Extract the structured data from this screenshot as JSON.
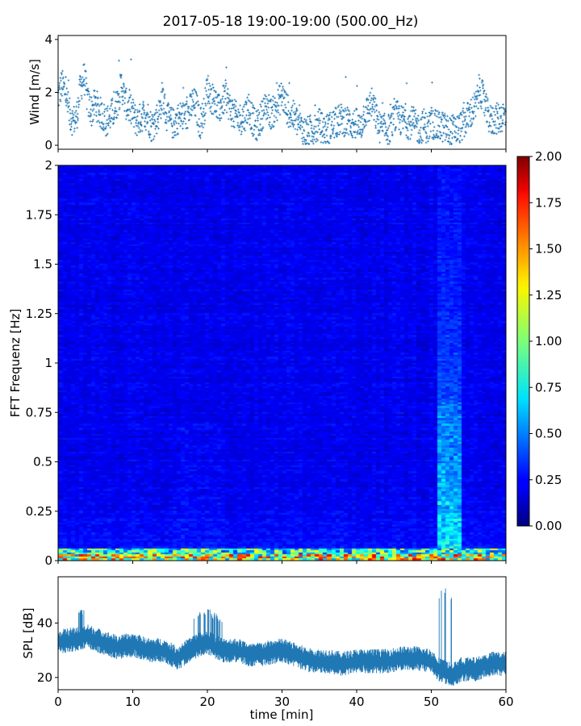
{
  "title": "2017-05-18 19:00-19:00 (500.00_Hz)",
  "chart_data": [
    {
      "type": "scatter",
      "panel": "wind",
      "ylabel": "Wind [m/s]",
      "xlim": [
        0,
        60
      ],
      "ylim": [
        -0.15,
        4.15
      ],
      "yticks": [
        "0",
        "2",
        "4"
      ],
      "marker_color": "#1f77b4",
      "x": [
        0.0,
        0.5,
        1.0,
        1.5,
        2.0,
        2.5,
        3.0,
        3.5,
        4.0,
        4.5,
        5.0,
        5.5,
        6.0,
        6.5,
        7.0,
        7.5,
        8.0,
        8.5,
        9.0,
        9.5,
        10.0,
        10.5,
        11.0,
        11.5,
        12.0,
        12.5,
        13.0,
        13.5,
        14.0,
        14.5,
        15.0,
        15.5,
        16.0,
        16.5,
        17.0,
        17.5,
        18.0,
        18.5,
        19.0,
        19.5,
        20.0,
        20.5,
        21.0,
        21.5,
        22.0,
        22.5,
        23.0,
        23.5,
        24.0,
        24.5,
        25.0,
        25.5,
        26.0,
        26.5,
        27.0,
        27.5,
        28.0,
        28.5,
        29.0,
        29.5,
        30.0,
        30.5,
        31.0,
        31.5,
        32.0,
        32.5,
        33.0,
        33.5,
        34.0,
        34.5,
        35.0,
        35.5,
        36.0,
        36.5,
        37.0,
        37.5,
        38.0,
        38.5,
        39.0,
        39.5,
        40.0,
        40.5,
        41.0,
        41.5,
        42.0,
        42.5,
        43.0,
        43.5,
        44.0,
        44.5,
        45.0,
        45.5,
        46.0,
        46.5,
        47.0,
        47.5,
        48.0,
        48.5,
        49.0,
        49.5,
        50.0,
        50.5,
        51.0,
        51.5,
        52.0,
        52.5,
        53.0,
        53.5,
        54.0,
        54.5,
        55.0,
        55.5,
        56.0,
        56.5,
        57.0,
        57.5,
        58.0,
        58.5,
        59.0,
        59.5
      ],
      "values": [
        1.8,
        2.3,
        2.0,
        1.2,
        0.9,
        1.1,
        2.2,
        2.6,
        1.6,
        1.3,
        1.6,
        1.3,
        1.1,
        0.9,
        1.1,
        1.3,
        1.7,
        2.3,
        1.6,
        1.4,
        1.2,
        0.9,
        1.0,
        1.2,
        1.1,
        0.7,
        0.9,
        1.2,
        1.9,
        1.1,
        0.9,
        0.8,
        1.0,
        1.1,
        1.1,
        1.2,
        1.6,
        1.5,
        0.8,
        1.2,
        2.2,
        1.8,
        1.7,
        1.3,
        1.6,
        1.9,
        1.4,
        1.2,
        1.0,
        1.0,
        1.1,
        1.5,
        1.0,
        0.7,
        0.9,
        1.3,
        1.5,
        1.2,
        1.3,
        1.6,
        1.9,
        1.5,
        1.2,
        1.1,
        0.9,
        0.7,
        0.5,
        0.5,
        0.6,
        0.6,
        0.8,
        0.6,
        0.6,
        0.7,
        0.8,
        0.9,
        1.0,
        0.9,
        0.9,
        0.8,
        0.8,
        0.6,
        1.2,
        1.3,
        1.6,
        1.2,
        0.7,
        0.6,
        0.6,
        0.6,
        1.0,
        1.1,
        0.9,
        1.0,
        0.8,
        0.9,
        0.7,
        0.6,
        0.8,
        0.6,
        0.9,
        0.7,
        0.7,
        0.7,
        0.6,
        0.5,
        0.6,
        0.6,
        0.7,
        0.9,
        1.1,
        1.3,
        1.5,
        2.2,
        1.7,
        1.2,
        0.9,
        1.0,
        1.0,
        1.1
      ]
    },
    {
      "type": "heatmap",
      "panel": "spectrogram",
      "ylabel": "FFT Frequenz [Hz]",
      "xlim": [
        0,
        60
      ],
      "ylim": [
        0,
        2
      ],
      "yticks": [
        "0",
        "0.25",
        "0.5",
        "0.75",
        "1",
        "1.25",
        "1.5",
        "1.75",
        "2"
      ],
      "colormap": "jet",
      "zlim": [
        0,
        2
      ],
      "colorbar_ticks": [
        "0.00",
        "0.25",
        "0.50",
        "0.75",
        "1.00",
        "1.25",
        "1.50",
        "1.75",
        "2.00"
      ],
      "description_of_features": "low amplitude 0.1-0.3 everywhere, strong band near 0-0.05 Hz, broadband high energy around 50-54 min"
    },
    {
      "type": "line",
      "panel": "spl",
      "ylabel": "SPL [dB]",
      "xlabel": "time [min]",
      "xlim": [
        0,
        60
      ],
      "ylim": [
        15.5,
        57
      ],
      "yticks": [
        "20",
        "40"
      ],
      "xticks": [
        "0",
        "10",
        "20",
        "30",
        "40",
        "50",
        "60"
      ],
      "line_color": "#1f77b4",
      "x": [
        0,
        2,
        4,
        6,
        8,
        10,
        12,
        14,
        16,
        18,
        20,
        22,
        24,
        26,
        28,
        30,
        32,
        34,
        36,
        38,
        40,
        42,
        44,
        46,
        48,
        50,
        51,
        52,
        53,
        54,
        56,
        58,
        60
      ],
      "values": [
        33,
        34,
        35,
        33,
        31,
        32,
        30,
        30,
        27,
        31,
        33,
        30,
        30,
        28,
        29,
        30,
        28,
        26,
        26,
        25,
        26,
        26,
        26,
        27,
        27,
        26,
        23,
        22,
        21,
        23,
        23,
        25,
        25
      ]
    }
  ]
}
